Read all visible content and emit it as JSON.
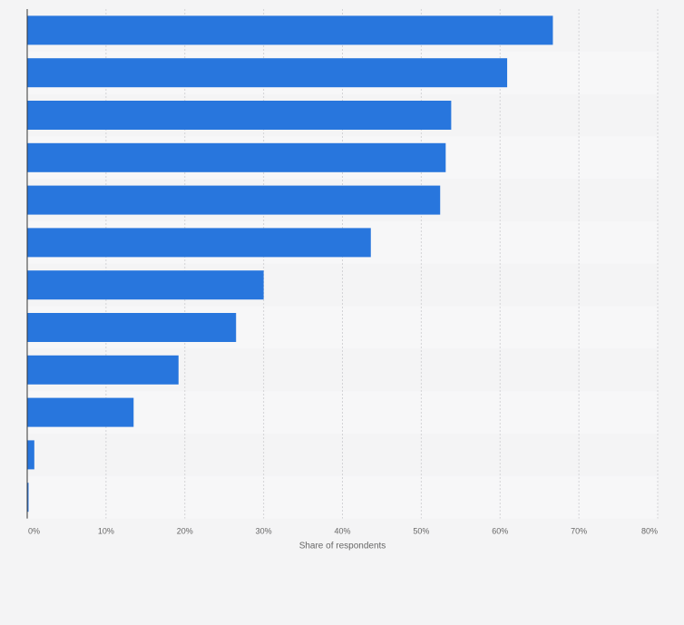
{
  "chart_data": {
    "type": "bar",
    "orientation": "horizontal",
    "title": "",
    "categories": [
      "",
      "",
      "",
      "",
      "",
      "",
      "",
      "",
      "",
      "",
      "",
      ""
    ],
    "values": [
      66.7,
      60.9,
      53.8,
      53.1,
      52.4,
      43.6,
      30.0,
      26.5,
      19.2,
      13.5,
      0.9,
      0.1
    ],
    "xlabel": "Share of respondents",
    "ylabel": "",
    "xlim": [
      0,
      80
    ],
    "xticks": [
      0,
      10,
      20,
      30,
      40,
      50,
      60,
      70,
      80
    ],
    "tick_labels": [
      "0%",
      "10%",
      "20%",
      "30%",
      "40%",
      "50%",
      "60%",
      "70%",
      "80%"
    ],
    "grid": true,
    "bar_color": "#2876dd",
    "legend": "none"
  }
}
